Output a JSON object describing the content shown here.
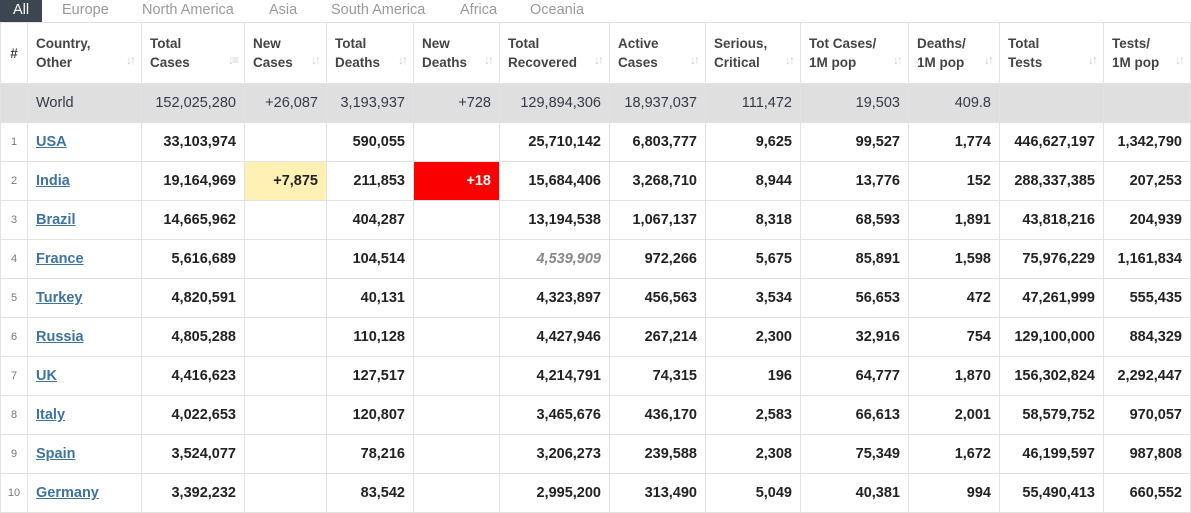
{
  "tabs": [
    "All",
    "Europe",
    "North America",
    "Asia",
    "South America",
    "Africa",
    "Oceania"
  ],
  "colors": {
    "active_tab_bg": "#3c4650",
    "new_cases_highlight": "#fff1b3",
    "new_deaths_highlight": "#fa0000",
    "world_row_bg": "#dfdfdf",
    "link": "#3d73a0"
  },
  "headers": [
    {
      "line1": "#",
      "line2": ""
    },
    {
      "line1": "Country,",
      "line2": "Other"
    },
    {
      "line1": "Total",
      "line2": "Cases"
    },
    {
      "line1": "New",
      "line2": "Cases"
    },
    {
      "line1": "Total",
      "line2": "Deaths"
    },
    {
      "line1": "New",
      "line2": "Deaths"
    },
    {
      "line1": "Total",
      "line2": "Recovered"
    },
    {
      "line1": "Active",
      "line2": "Cases"
    },
    {
      "line1": "Serious,",
      "line2": "Critical"
    },
    {
      "line1": "Tot Cases/",
      "line2": "1M pop"
    },
    {
      "line1": "Deaths/",
      "line2": "1M pop"
    },
    {
      "line1": "Total",
      "line2": "Tests"
    },
    {
      "line1": "Tests/",
      "line2": "1M pop"
    }
  ],
  "world": {
    "country": "World",
    "total_cases": "152,025,280",
    "new_cases": "+26,087",
    "total_deaths": "3,193,937",
    "new_deaths": "+728",
    "total_recovered": "129,894,306",
    "active_cases": "18,937,037",
    "serious": "111,472",
    "cases_per_1m": "19,503",
    "deaths_per_1m": "409.8",
    "total_tests": "",
    "tests_per_1m": ""
  },
  "rows": [
    {
      "num": "1",
      "country": "USA",
      "total_cases": "33,103,974",
      "new_cases": "",
      "total_deaths": "590,055",
      "new_deaths": "",
      "total_recovered": "25,710,142",
      "active_cases": "6,803,777",
      "serious": "9,625",
      "cases_per_1m": "99,527",
      "deaths_per_1m": "1,774",
      "total_tests": "446,627,197",
      "tests_per_1m": "1,342,790"
    },
    {
      "num": "2",
      "country": "India",
      "total_cases": "19,164,969",
      "new_cases": "+7,875",
      "total_deaths": "211,853",
      "new_deaths": "+18",
      "total_recovered": "15,684,406",
      "active_cases": "3,268,710",
      "serious": "8,944",
      "cases_per_1m": "13,776",
      "deaths_per_1m": "152",
      "total_tests": "288,337,385",
      "tests_per_1m": "207,253"
    },
    {
      "num": "3",
      "country": "Brazil",
      "total_cases": "14,665,962",
      "new_cases": "",
      "total_deaths": "404,287",
      "new_deaths": "",
      "total_recovered": "13,194,538",
      "active_cases": "1,067,137",
      "serious": "8,318",
      "cases_per_1m": "68,593",
      "deaths_per_1m": "1,891",
      "total_tests": "43,818,216",
      "tests_per_1m": "204,939"
    },
    {
      "num": "4",
      "country": "France",
      "total_cases": "5,616,689",
      "new_cases": "",
      "total_deaths": "104,514",
      "new_deaths": "",
      "total_recovered": "4,539,909",
      "active_cases": "972,266",
      "serious": "5,675",
      "cases_per_1m": "85,891",
      "deaths_per_1m": "1,598",
      "total_tests": "75,976,229",
      "tests_per_1m": "1,161,834"
    },
    {
      "num": "5",
      "country": "Turkey",
      "total_cases": "4,820,591",
      "new_cases": "",
      "total_deaths": "40,131",
      "new_deaths": "",
      "total_recovered": "4,323,897",
      "active_cases": "456,563",
      "serious": "3,534",
      "cases_per_1m": "56,653",
      "deaths_per_1m": "472",
      "total_tests": "47,261,999",
      "tests_per_1m": "555,435"
    },
    {
      "num": "6",
      "country": "Russia",
      "total_cases": "4,805,288",
      "new_cases": "",
      "total_deaths": "110,128",
      "new_deaths": "",
      "total_recovered": "4,427,946",
      "active_cases": "267,214",
      "serious": "2,300",
      "cases_per_1m": "32,916",
      "deaths_per_1m": "754",
      "total_tests": "129,100,000",
      "tests_per_1m": "884,329"
    },
    {
      "num": "7",
      "country": "UK",
      "total_cases": "4,416,623",
      "new_cases": "",
      "total_deaths": "127,517",
      "new_deaths": "",
      "total_recovered": "4,214,791",
      "active_cases": "74,315",
      "serious": "196",
      "cases_per_1m": "64,777",
      "deaths_per_1m": "1,870",
      "total_tests": "156,302,824",
      "tests_per_1m": "2,292,447"
    },
    {
      "num": "8",
      "country": "Italy",
      "total_cases": "4,022,653",
      "new_cases": "",
      "total_deaths": "120,807",
      "new_deaths": "",
      "total_recovered": "3,465,676",
      "active_cases": "436,170",
      "serious": "2,583",
      "cases_per_1m": "66,613",
      "deaths_per_1m": "2,001",
      "total_tests": "58,579,752",
      "tests_per_1m": "970,057"
    },
    {
      "num": "9",
      "country": "Spain",
      "total_cases": "3,524,077",
      "new_cases": "",
      "total_deaths": "78,216",
      "new_deaths": "",
      "total_recovered": "3,206,273",
      "active_cases": "239,588",
      "serious": "2,308",
      "cases_per_1m": "75,349",
      "deaths_per_1m": "1,672",
      "total_tests": "46,199,597",
      "tests_per_1m": "987,808"
    },
    {
      "num": "10",
      "country": "Germany",
      "total_cases": "3,392,232",
      "new_cases": "",
      "total_deaths": "83,542",
      "new_deaths": "",
      "total_recovered": "2,995,200",
      "active_cases": "313,490",
      "serious": "5,049",
      "cases_per_1m": "40,381",
      "deaths_per_1m": "994",
      "total_tests": "55,490,413",
      "tests_per_1m": "660,552"
    }
  ]
}
